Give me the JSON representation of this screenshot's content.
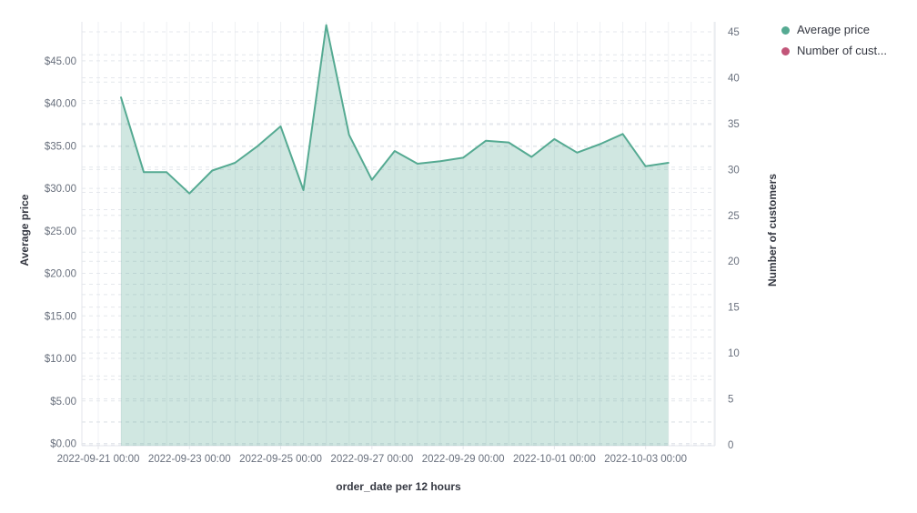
{
  "chart_data": {
    "type": "area",
    "title": "",
    "xlabel": "order_date per 12 hours",
    "x_tick_labels": [
      "2022-09-21 00:00",
      "2022-09-23 00:00",
      "2022-09-25 00:00",
      "2022-09-27 00:00",
      "2022-09-29 00:00",
      "2022-10-01 00:00",
      "2022-10-03 00:00"
    ],
    "x": [
      "2022-09-21 12:00",
      "2022-09-22 00:00",
      "2022-09-22 12:00",
      "2022-09-23 00:00",
      "2022-09-23 12:00",
      "2022-09-24 00:00",
      "2022-09-24 12:00",
      "2022-09-25 00:00",
      "2022-09-25 12:00",
      "2022-09-26 00:00",
      "2022-09-26 12:00",
      "2022-09-27 00:00",
      "2022-09-27 12:00",
      "2022-09-28 00:00",
      "2022-09-28 12:00",
      "2022-09-29 00:00",
      "2022-09-29 12:00",
      "2022-09-30 00:00",
      "2022-09-30 12:00",
      "2022-10-01 00:00",
      "2022-10-01 12:00",
      "2022-10-02 00:00",
      "2022-10-02 12:00",
      "2022-10-03 00:00",
      "2022-10-03 12:00"
    ],
    "series": [
      {
        "name": "Average price",
        "axis": "left",
        "color": "#55aa92",
        "fill": "rgba(85,170,146,0.28)",
        "values": [
          40.7,
          31.9,
          31.9,
          29.4,
          32.1,
          33.0,
          35.0,
          37.3,
          29.8,
          49.2,
          36.3,
          31.0,
          34.4,
          32.9,
          33.2,
          33.6,
          35.6,
          35.4,
          33.7,
          35.8,
          34.2,
          35.2,
          36.4,
          32.6,
          33.0
        ]
      },
      {
        "name": "Number of cust...",
        "axis": "right",
        "color": "#c25579",
        "values": []
      }
    ],
    "y_left": {
      "label": "Average price",
      "tick_labels": [
        "$0.00",
        "$5.00",
        "$10.00",
        "$15.00",
        "$20.00",
        "$25.00",
        "$30.00",
        "$35.00",
        "$40.00",
        "$45.00"
      ],
      "tick_values": [
        0,
        5,
        10,
        15,
        20,
        25,
        30,
        35,
        40,
        45
      ],
      "range": [
        0,
        49.6
      ],
      "grid_interval": 2.5
    },
    "y_right": {
      "label": "Number of customers",
      "tick_labels": [
        "0",
        "5",
        "10",
        "15",
        "20",
        "25",
        "30",
        "35",
        "40",
        "45"
      ],
      "tick_values": [
        0,
        5,
        10,
        15,
        20,
        25,
        30,
        35,
        40,
        45
      ],
      "range": [
        0,
        46
      ],
      "grid_interval": 2.5
    },
    "grid": {
      "vertical": "solid every 12 hours",
      "horizontal": "dashed"
    },
    "legend_position": "top-right"
  },
  "legend": {
    "items": [
      {
        "label": "Average price",
        "color": "#55aa92"
      },
      {
        "label": "Number of cust...",
        "color": "#c25579"
      }
    ]
  },
  "colors": {
    "grid_vertical": "#eff1f4",
    "grid_dashed": "#e4e7ec",
    "axis_line": "#e3e6eb",
    "tick_text": "#69707d",
    "title_text": "#343741"
  }
}
